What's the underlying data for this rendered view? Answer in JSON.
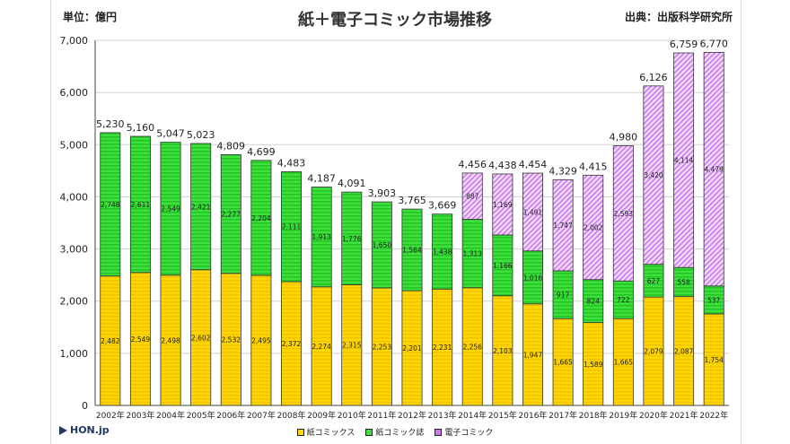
{
  "header": {
    "unit": "単位：億円",
    "title": "紙＋電子コミック市場推移",
    "source": "出典：出版科学研究所"
  },
  "footer": {
    "logo": "HON.jp"
  },
  "colors": {
    "paper_comics": "#ffd700",
    "paper_magazine": "#3ee03e",
    "digital_comics": "#cc77ee",
    "grid": "#d0d0d0",
    "axis": "#444444"
  },
  "chart_data": {
    "type": "bar",
    "stacked": true,
    "categories": [
      "2002年",
      "2003年",
      "2004年",
      "2005年",
      "2006年",
      "2007年",
      "2008年",
      "2009年",
      "2010年",
      "2011年",
      "2012年",
      "2013年",
      "2014年",
      "2015年",
      "2016年",
      "2017年",
      "2018年",
      "2019年",
      "2020年",
      "2021年",
      "2022年"
    ],
    "series": [
      {
        "name": "紙コミックス",
        "values": [
          2482,
          2549,
          2498,
          2602,
          2532,
          2495,
          2372,
          2274,
          2315,
          2253,
          2201,
          2231,
          2256,
          2103,
          1947,
          1665,
          1589,
          1665,
          2079,
          2087,
          1754
        ]
      },
      {
        "name": "紙コミック誌",
        "values": [
          2748,
          2611,
          2549,
          2421,
          2277,
          2204,
          2111,
          1913,
          1776,
          1650,
          1564,
          1438,
          1313,
          1166,
          1016,
          917,
          824,
          722,
          627,
          558,
          537
        ]
      },
      {
        "name": "電子コミック",
        "values": [
          0,
          0,
          0,
          0,
          0,
          0,
          0,
          0,
          0,
          0,
          0,
          0,
          887,
          1169,
          1491,
          1747,
          2002,
          2593,
          3420,
          4114,
          4479
        ]
      }
    ],
    "totals": [
      5230,
      5160,
      5047,
      5023,
      4809,
      4699,
      4483,
      4187,
      4091,
      3903,
      3765,
      3669,
      4456,
      4438,
      4454,
      4329,
      4415,
      4980,
      6126,
      6759,
      6770
    ],
    "ylim": [
      0,
      7000
    ],
    "yticks": [
      0,
      1000,
      2000,
      3000,
      4000,
      5000,
      6000,
      7000
    ],
    "grid": true,
    "legend_position": "bottom"
  }
}
